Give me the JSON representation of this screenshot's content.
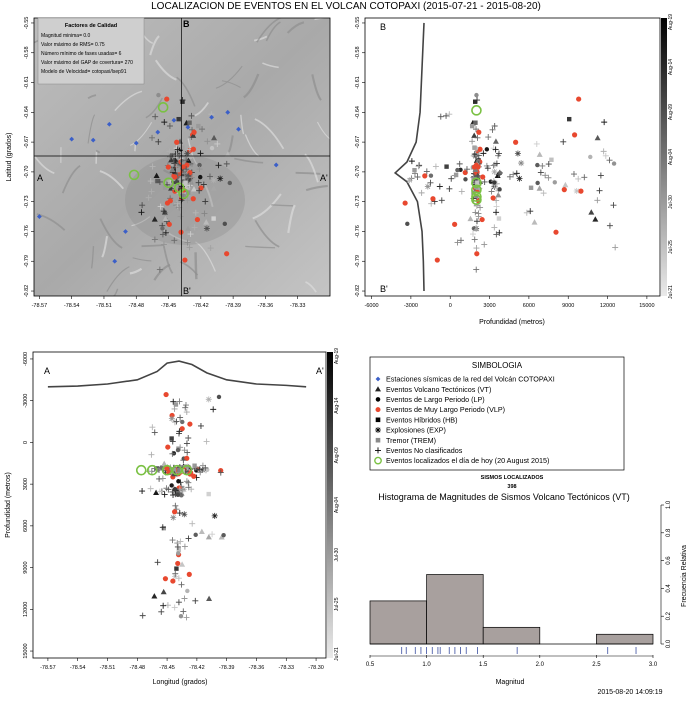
{
  "figure": {
    "title": "LOCALIZACION DE EVENTOS EN EL VOLCAN COTOPAXI (2015-07-21 - 2015-08-20)",
    "timestamp": "2015-08-20 14:09:19",
    "colors": {
      "red": "#e8482f",
      "blue": "#3b5fc8",
      "green": "#7ac143",
      "relief": "#b4b4b4",
      "bar": "#a8a09e"
    }
  },
  "quality": {
    "title": "Factores de Calidad",
    "lines": [
      "Magnitud minima= 0.0",
      "Valor máximo de RMS= 0.75",
      "Número mínimo de fases usadas= 6",
      "Valor máximo del GAP de covertura= 270",
      "Modelo de Velocidad= cotopaxi/lsep91"
    ]
  },
  "map_labels": {
    "a": "A",
    "a2": "A'",
    "b": "B",
    "b2": "B'"
  },
  "colorbar": {
    "labels": [
      "Aug-19",
      "Aug-14",
      "Aug-09",
      "Aug-04",
      "Jul-30",
      "Jul-25",
      "Jul-21"
    ]
  },
  "legend": {
    "title": "SIMBOLOGIA",
    "items": [
      {
        "label": "Estaciones sísmicas de la red del Volcán COTOPAXI",
        "icon": "small-diamond-icon"
      },
      {
        "label": "Eventos Volcano Tectónicos (VT)",
        "icon": "triangle-icon"
      },
      {
        "label": "Eventos de Largo Periodo (LP)",
        "icon": "dot-icon"
      },
      {
        "label": "Eventos de Muy Largo Periodo (VLP)",
        "icon": "red-star-dot-icon"
      },
      {
        "label": "Eventos Híbridos (HB)",
        "icon": "square-icon"
      },
      {
        "label": "Explosiones (EXP)",
        "icon": "asterisk-icon"
      },
      {
        "label": "Tremor (TREM)",
        "icon": "grey-square-icon"
      },
      {
        "label": "Eventos No clasificados",
        "icon": "plus-icon"
      },
      {
        "label": "Eventos localizados el día de hoy (20 August 2015)",
        "icon": "green-circle-icon"
      }
    ],
    "sismos_title": "SISMOS LOCALIZADOS",
    "sismos_count": "398"
  },
  "chart_data": [
    {
      "type": "scatter",
      "name": "map",
      "xlabel": "",
      "ylabel": "Latitud (grados)",
      "xlim": [
        -78.575,
        -78.3
      ],
      "ylim": [
        -0.825,
        -0.545
      ],
      "x_ticks": [
        "-78.57",
        "-78.54",
        "-78.51",
        "-78.48",
        "-78.45",
        "-78.42",
        "-78.39",
        "-78.36",
        "-78.33"
      ],
      "y_ticks": [
        "-0.55",
        "-0.58",
        "-0.61",
        "-0.64",
        "-0.67",
        "-0.70",
        "-0.73",
        "-0.76",
        "-0.79",
        "-0.82"
      ],
      "section_lines": {
        "lon": -78.438,
        "lat": -0.684
      },
      "stations": [
        [
          -78.57,
          -0.745
        ],
        [
          -78.54,
          -0.667
        ],
        [
          -78.52,
          -0.668
        ],
        [
          -78.505,
          -0.652
        ],
        [
          -78.48,
          -0.671
        ],
        [
          -78.46,
          -0.66
        ],
        [
          -78.445,
          -0.648
        ],
        [
          -78.432,
          -0.655
        ],
        [
          -78.41,
          -0.645
        ],
        [
          -78.395,
          -0.64
        ],
        [
          -78.385,
          -0.657
        ],
        [
          -78.35,
          -0.693
        ],
        [
          -78.49,
          -0.76
        ],
        [
          -78.5,
          -0.79
        ]
      ],
      "today": [
        [
          -78.455,
          -0.635
        ],
        [
          -78.482,
          -0.703
        ],
        [
          -78.44,
          -0.716
        ],
        [
          -78.436,
          -0.722
        ],
        [
          -78.45,
          -0.711
        ]
      ]
    },
    {
      "type": "scatter",
      "name": "latitude-section",
      "xlabel": "Profundidad (metros)",
      "ylabel": "",
      "xlim": [
        -6500,
        16000
      ],
      "ylim": [
        -0.825,
        -0.545
      ],
      "x_ticks": [
        "-6000",
        "-3000",
        "0",
        "3000",
        "6000",
        "9000",
        "12000",
        "15000"
      ],
      "y_ticks": [
        "-0.55",
        "-0.58",
        "-0.61",
        "-0.64",
        "-0.67",
        "-0.70",
        "-0.73",
        "-0.76",
        "-0.79",
        "-0.82"
      ],
      "topo_profile": [
        [
          -2000,
          -0.55
        ],
        [
          -2100,
          -0.58
        ],
        [
          -2200,
          -0.61
        ],
        [
          -2300,
          -0.64
        ],
        [
          -2600,
          -0.67
        ],
        [
          -3300,
          -0.69
        ],
        [
          -4200,
          -0.701
        ],
        [
          -3300,
          -0.71
        ],
        [
          -2500,
          -0.73
        ],
        [
          -2150,
          -0.76
        ],
        [
          -2050,
          -0.79
        ],
        [
          -2000,
          -0.82
        ]
      ],
      "today": [
        [
          2000,
          -0.638
        ],
        [
          2000,
          -0.718
        ],
        [
          2000,
          -0.725
        ],
        [
          2000,
          -0.711
        ],
        [
          2000,
          -0.728
        ]
      ]
    },
    {
      "type": "scatter",
      "name": "longitude-section",
      "xlabel": "Longitud (grados)",
      "ylabel": "Profundidad (metros)",
      "xlim": [
        -78.585,
        -78.29
      ],
      "ylim": [
        15500,
        -6500
      ],
      "x_ticks": [
        "-78.57",
        "-78.54",
        "-78.51",
        "-78.48",
        "-78.45",
        "-78.42",
        "-78.39",
        "-78.36",
        "-78.33",
        "-78.30"
      ],
      "y_ticks": [
        "-6000",
        "-3000",
        "0",
        "3000",
        "6000",
        "9000",
        "12000",
        "15000"
      ],
      "topo_profile": [
        [
          -78.57,
          -4000
        ],
        [
          -78.54,
          -4050
        ],
        [
          -78.51,
          -4200
        ],
        [
          -78.48,
          -4500
        ],
        [
          -78.46,
          -5100
        ],
        [
          -78.45,
          -5700
        ],
        [
          -78.438,
          -5850
        ],
        [
          -78.425,
          -5600
        ],
        [
          -78.41,
          -5000
        ],
        [
          -78.39,
          -4500
        ],
        [
          -78.36,
          -4200
        ],
        [
          -78.33,
          -4100
        ],
        [
          -78.31,
          -4000
        ]
      ],
      "today": [
        [
          -78.465,
          2000
        ],
        [
          -78.43,
          2000
        ],
        [
          -78.45,
          2000
        ],
        [
          -78.44,
          2000
        ],
        [
          -78.476,
          2000
        ]
      ]
    },
    {
      "type": "bar",
      "name": "magnitude-histogram",
      "title": "Histograma de Magnitudes de Sismos Volcano Tectónicos (VT)",
      "xlabel": "Magnitud",
      "ylabel": "Frecuencia Relativa",
      "xlim": [
        0.5,
        3.0
      ],
      "ylim": [
        0,
        1.0
      ],
      "x_ticks": [
        "0.5",
        "1.0",
        "1.5",
        "2.0",
        "2.5",
        "3.0"
      ],
      "y_ticks": [
        "0.0",
        "0.2",
        "0.4",
        "0.6",
        "0.8",
        "1.0"
      ],
      "bins": [
        [
          0.5,
          1.0
        ],
        [
          1.0,
          1.5
        ],
        [
          1.5,
          2.0
        ],
        [
          2.0,
          2.5
        ],
        [
          2.5,
          3.0
        ]
      ],
      "values": [
        0.31,
        0.5,
        0.12,
        0.0,
        0.07
      ],
      "rug": [
        0.78,
        0.82,
        0.9,
        0.95,
        1.0,
        1.05,
        1.1,
        1.12,
        1.2,
        1.25,
        1.3,
        1.35,
        1.45,
        1.8,
        2.6,
        2.85
      ]
    }
  ]
}
